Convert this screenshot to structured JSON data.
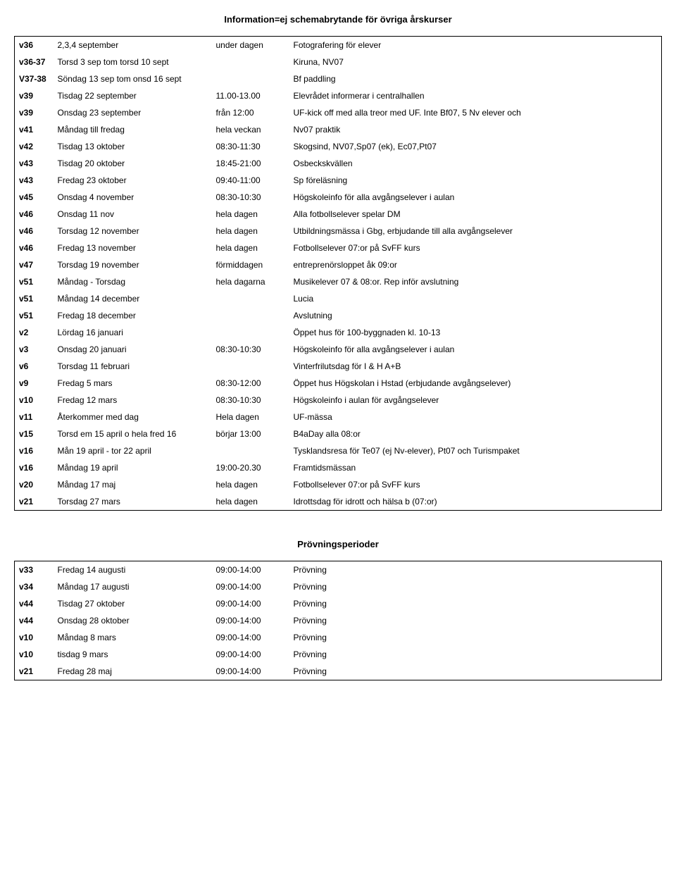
{
  "title": "Information=ej schemabrytande för övriga årskurser",
  "section2_title": "Prövningsperioder",
  "table1": {
    "rows": [
      {
        "week": "v36",
        "date": "2,3,4 september",
        "time": "under dagen",
        "info": "Fotografering för elever"
      },
      {
        "week": "v36-37",
        "date": "Torsd 3 sep tom torsd 10 sept",
        "time": "",
        "info": "Kiruna, NV07"
      },
      {
        "week": "V37-38",
        "date": "Söndag 13 sep tom onsd 16 sept",
        "time": "",
        "info": "Bf paddling"
      },
      {
        "week": "v39",
        "date": "Tisdag 22 september",
        "time": "11.00-13.00",
        "info": "Elevrådet informerar i centralhallen"
      },
      {
        "week": "v39",
        "date": "Onsdag 23 september",
        "time": "från 12:00",
        "info": "UF-kick off med alla treor med UF. Inte Bf07, 5 Nv elever och"
      },
      {
        "week": "v41",
        "date": "Måndag till fredag",
        "time": "hela veckan",
        "info": "Nv07 praktik"
      },
      {
        "week": "v42",
        "date": "Tisdag 13 oktober",
        "time": "08:30-11:30",
        "info": "Skogsind, NV07,Sp07 (ek), Ec07,Pt07"
      },
      {
        "week": "v43",
        "date": "Tisdag 20 oktober",
        "time": "18:45-21:00",
        "info": "Osbeckskvällen"
      },
      {
        "week": "v43",
        "date": "Fredag 23 oktober",
        "time": "09:40-11:00",
        "info": "Sp föreläsning"
      },
      {
        "week": "v45",
        "date": "Onsdag 4 november",
        "time": "08:30-10:30",
        "info": "Högskoleinfo för alla avgångselever i aulan"
      },
      {
        "week": "v46",
        "date": "Onsdag 11 nov",
        "time": "hela dagen",
        "info": "Alla fotbollselever spelar DM"
      },
      {
        "week": "v46",
        "date": "Torsdag 12 november",
        "time": "hela dagen",
        "info": "Utbildningsmässa i Gbg, erbjudande till alla avgångselever"
      },
      {
        "week": "v46",
        "date": "Fredag 13 november",
        "time": "hela dagen",
        "info": "Fotbollselever 07:or på  SvFF kurs"
      },
      {
        "week": "v47",
        "date": "Torsdag 19 november",
        "time": "förmiddagen",
        "info": "entreprenörsloppet åk 09:or"
      },
      {
        "week": "v51",
        "date": "Måndag - Torsdag",
        "time": "hela dagarna",
        "info": "Musikelever 07 & 08:or. Rep inför avslutning"
      },
      {
        "week": "v51",
        "date": "Måndag 14 december",
        "time": "",
        "info": "Lucia"
      },
      {
        "week": "v51",
        "date": "Fredag 18 december",
        "time": "",
        "info": "Avslutning"
      },
      {
        "week": "v2",
        "date": "Lördag 16 januari",
        "time": "",
        "info": "Öppet hus för 100-byggnaden kl. 10-13"
      },
      {
        "week": "v3",
        "date": "Onsdag 20 januari",
        "time": "08:30-10:30",
        "info": "Högskoleinfo för alla avgångselever i aulan"
      },
      {
        "week": "v6",
        "date": "Torsdag 11 februari",
        "time": "",
        "info": "Vinterfrilutsdag för I & H A+B"
      },
      {
        "week": "v9",
        "date": "Fredag 5 mars",
        "time": "08:30-12:00",
        "info": "Öppet hus Högskolan i Hstad (erbjudande avgångselever)"
      },
      {
        "week": "v10",
        "date": "Fredag 12 mars",
        "time": "08:30-10:30",
        "info": "Högskoleinfo i aulan för avgångselever"
      },
      {
        "week": "v11",
        "date": "Återkommer med dag",
        "time": "Hela dagen",
        "info": "UF-mässa"
      },
      {
        "week": "v15",
        "date": "Torsd em 15 april o hela fred 16",
        "time": "börjar 13:00",
        "info": "B4aDay alla 08:or"
      },
      {
        "week": "v16",
        "date": "Mån 19 april - tor 22 april",
        "time": "",
        "info": "Tysklandsresa för Te07 (ej Nv-elever), Pt07 och Turismpaket"
      },
      {
        "week": "v16",
        "date": "Måndag 19 april",
        "time": "19:00-20.30",
        "info": "Framtidsmässan"
      },
      {
        "week": "v20",
        "date": "Måndag 17 maj",
        "time": "hela dagen",
        "info": "Fotbollselever 07:or på  SvFF kurs"
      },
      {
        "week": "v21",
        "date": "Torsdag 27 mars",
        "time": "hela dagen",
        "info": "Idrottsdag för  idrott och hälsa b (07:or)"
      }
    ]
  },
  "table2": {
    "rows": [
      {
        "week": "v33",
        "date": "Fredag 14 augusti",
        "time": "09:00-14:00",
        "info": "Prövning"
      },
      {
        "week": "v34",
        "date": "Måndag 17 augusti",
        "time": "09:00-14:00",
        "info": "Prövning"
      },
      {
        "week": "v44",
        "date": "Tisdag 27 oktober",
        "time": "09:00-14:00",
        "info": "Prövning"
      },
      {
        "week": "v44",
        "date": "Onsdag 28 oktober",
        "time": "09:00-14:00",
        "info": "Prövning"
      },
      {
        "week": "v10",
        "date": "Måndag 8 mars",
        "time": "09:00-14:00",
        "info": "Prövning"
      },
      {
        "week": "v10",
        "date": "tisdag 9 mars",
        "time": "09:00-14:00",
        "info": "Prövning"
      },
      {
        "week": "v21",
        "date": "Fredag 28 maj",
        "time": "09:00-14:00",
        "info": "Prövning"
      }
    ]
  }
}
